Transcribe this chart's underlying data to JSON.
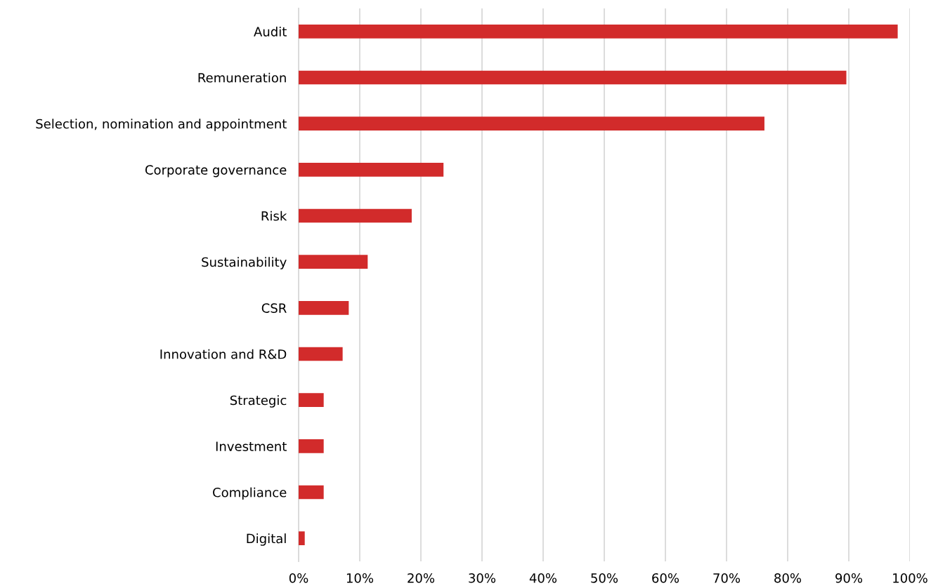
{
  "chart_data": {
    "type": "bar",
    "orientation": "horizontal",
    "categories": [
      "Audit",
      "Remuneration",
      "Selection, nomination and appointment",
      "Corporate governance",
      "Risk",
      "Sustainability",
      "CSR",
      "Innovation and R&D",
      "Strategic",
      "Investment",
      "Compliance",
      "Digital"
    ],
    "values": [
      98,
      89.6,
      76.2,
      23.7,
      18.5,
      11.3,
      8.2,
      7.2,
      4.1,
      4.1,
      4.1,
      1.0
    ],
    "color": "#d22b2b",
    "xlim": [
      0,
      100
    ],
    "xticks": [
      {
        "value": 0,
        "label": "0%"
      },
      {
        "value": 10,
        "label": "10%"
      },
      {
        "value": 20,
        "label": "20%"
      },
      {
        "value": 30,
        "label": "30%"
      },
      {
        "value": 40,
        "label": "40%"
      },
      {
        "value": 50,
        "label": "50%"
      },
      {
        "value": 60,
        "label": "60%"
      },
      {
        "value": 70,
        "label": "70%"
      },
      {
        "value": 80,
        "label": "80%"
      },
      {
        "value": 90,
        "label": "90%"
      },
      {
        "value": 100,
        "label": "100%"
      }
    ],
    "grid": "x",
    "legend": false
  }
}
